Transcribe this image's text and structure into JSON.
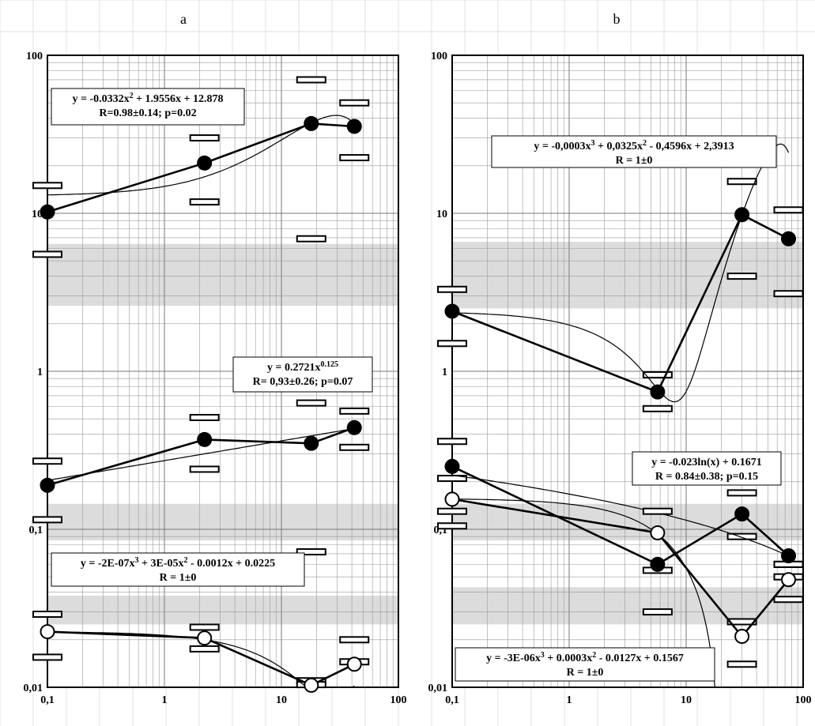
{
  "chart_data": [
    {
      "panel": "a",
      "type": "scatter",
      "xscale": "log",
      "yscale": "log",
      "xlim": [
        0.1,
        100
      ],
      "ylim": [
        0.01,
        100
      ],
      "xticks": [
        "0,1",
        "1",
        "10",
        "100"
      ],
      "yticks": [
        "0,01",
        "0,1",
        "1",
        "10",
        "100"
      ],
      "bands": [
        [
          2.6,
          6.4
        ],
        [
          0.085,
          0.145
        ],
        [
          0.025,
          0.038
        ]
      ],
      "series": [
        {
          "x": [
            0.1,
            2.2,
            18,
            42
          ],
          "y": [
            10.2,
            20.8,
            37,
            35.5
          ],
          "marker": "filled",
          "err_hi": [
            15,
            30,
            70,
            50
          ],
          "err_lo": [
            5.5,
            11.8,
            6.9,
            22.5
          ],
          "fit": {
            "kind": "poly",
            "coef": [
              12.878,
              1.9556,
              -0.0332
            ]
          },
          "equation": [
            "y = -0.0332x² + 1.9556x + 12.878",
            "R=0.98±0.14; p=0.02"
          ]
        },
        {
          "x": [
            0.1,
            2.2,
            18,
            42
          ],
          "y": [
            0.19,
            0.37,
            0.35,
            0.44
          ],
          "marker": "filled",
          "err_hi": [
            0.27,
            0.51,
            0.63,
            0.56
          ],
          "err_lo": [
            0.115,
            0.24,
            0.072,
            0.33
          ],
          "fit": {
            "kind": "power",
            "a": 0.2721,
            "b": 0.125
          },
          "equation": [
            "y = 0.2721x^0.125",
            "R= 0,93±0.26; p=0.07"
          ]
        },
        {
          "x": [
            0.1,
            2.2,
            18,
            42
          ],
          "y": [
            0.0225,
            0.0205,
            0.0103,
            0.014
          ],
          "marker": "open",
          "err_hi": [
            0.029,
            0.024,
            0.011,
            0.02
          ],
          "err_lo": [
            0.0155,
            0.0175,
            0.0104,
            0.0145
          ],
          "fit": {
            "kind": "poly",
            "coef": [
              0.0225,
              -0.0012,
              3e-05,
              -2e-07
            ]
          },
          "equation": [
            "y = -2E-07x³ + 3E-05x² - 0.0012x + 0.0225",
            "R = 1±0"
          ]
        }
      ]
    },
    {
      "panel": "b",
      "type": "scatter",
      "xscale": "log",
      "yscale": "log",
      "xlim": [
        0.1,
        100
      ],
      "ylim": [
        0.01,
        100
      ],
      "xticks": [
        "0,1",
        "1",
        "10",
        "100"
      ],
      "yticks": [
        "0,01",
        "0,1",
        "1",
        "10",
        "100"
      ],
      "bands": [
        [
          2.5,
          6.6
        ],
        [
          0.085,
          0.145
        ],
        [
          0.025,
          0.043
        ]
      ],
      "series": [
        {
          "x": [
            0.1,
            5.7,
            30,
            75
          ],
          "y": [
            2.4,
            0.74,
            9.8,
            6.9
          ],
          "marker": "filled",
          "err_hi": [
            3.3,
            0.95,
            15.9,
            10.5
          ],
          "err_lo": [
            1.5,
            0.58,
            4.0,
            3.1
          ],
          "fit": {
            "kind": "poly",
            "coef": [
              2.3913,
              -0.4596,
              0.0325,
              -0.0003
            ]
          },
          "equation": [
            "y = -0,0003x³ + 0,0325x² - 0,4596x + 2,3913",
            "R = 1±0"
          ]
        },
        {
          "x": [
            0.1,
            5.7,
            30,
            75
          ],
          "y": [
            0.25,
            0.06,
            0.125,
            0.068
          ],
          "marker": "filled",
          "err_hi": [
            0.36,
            0.2,
            0.17,
            0.06
          ],
          "err_lo": [
            0.21,
            0.055,
            0.09,
            0.06
          ],
          "fit": {
            "kind": "log",
            "a": -0.023,
            "b": 0.1671
          },
          "equation": [
            "y = -0.023ln(x) + 0.1671",
            "R = 0.84±0.38; p=0.15"
          ]
        },
        {
          "x": [
            0.1,
            5.7,
            30,
            75
          ],
          "y": [
            0.155,
            0.095,
            0.021,
            0.048
          ],
          "marker": "open",
          "err_hi": [
            0.13,
            0.13,
            0.026,
            0.05
          ],
          "err_lo": [
            0.105,
            0.03,
            0.014,
            0.036
          ],
          "fit": {
            "kind": "poly",
            "coef": [
              0.1567,
              -0.0127,
              0.0003,
              -3e-06
            ]
          },
          "equation": [
            "y = -3E-06x³ + 0.0003x² - 0.0127x + 0.1567",
            "R = 1±0"
          ]
        }
      ]
    }
  ],
  "panel_labels": {
    "a": "a",
    "b": "b"
  }
}
